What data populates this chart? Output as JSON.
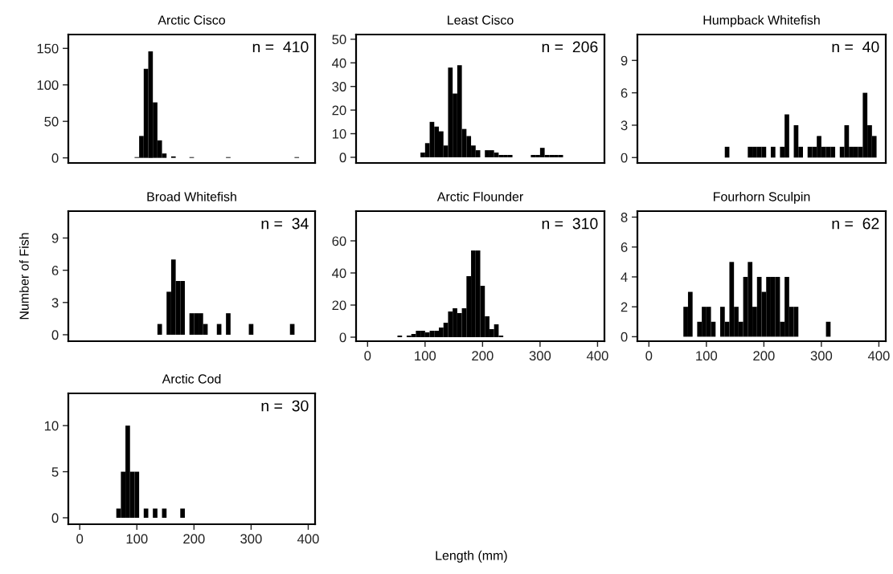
{
  "chart_data": [
    {
      "type": "histogram",
      "title": "Arctic Cisco",
      "annotations": [
        "n =  410"
      ],
      "color": "#000000",
      "tick_labels": "y",
      "xlim": [
        -20,
        412
      ],
      "ylim": [
        -7,
        169
      ],
      "yticks": [
        0,
        50,
        100,
        150
      ],
      "bins": [
        96,
        104,
        112,
        120,
        128,
        136,
        144,
        152,
        160,
        168,
        176,
        184,
        192,
        200,
        208,
        216,
        224,
        232,
        240,
        248,
        256,
        264,
        272,
        280,
        288,
        296,
        304,
        312,
        320,
        328,
        336,
        344,
        352,
        360,
        368,
        376,
        384
      ],
      "values": [
        1,
        30,
        122,
        146,
        76,
        24,
        6,
        0,
        2,
        0,
        0,
        0,
        1,
        0,
        0,
        0,
        0,
        0,
        0,
        0,
        1,
        0,
        0,
        0,
        0,
        0,
        0,
        0,
        0,
        0,
        0,
        0,
        0,
        0,
        0,
        1
      ]
    },
    {
      "type": "histogram",
      "title": "Least Cisco",
      "annotations": [
        "n =  206"
      ],
      "color": "#000000",
      "tick_labels": "y",
      "xlim": [
        -20,
        412
      ],
      "ylim": [
        -2.4,
        52
      ],
      "yticks": [
        0,
        10,
        20,
        30,
        40,
        50
      ],
      "bins": [
        92,
        100,
        108,
        116,
        124,
        132,
        140,
        148,
        156,
        164,
        172,
        180,
        188,
        196,
        204,
        212,
        220,
        228,
        236,
        244,
        252,
        260,
        268,
        276,
        284,
        292,
        300,
        308,
        316,
        324,
        332,
        340
      ],
      "values": [
        2,
        6,
        15,
        13,
        11,
        5,
        38,
        27,
        39,
        12,
        9,
        5,
        3,
        0,
        3,
        3,
        2,
        1,
        1,
        1,
        0,
        0,
        0,
        0,
        1,
        1,
        4,
        1,
        1,
        1,
        1
      ]
    },
    {
      "type": "histogram",
      "title": "Humpback Whitefish",
      "annotations": [
        "n =  40"
      ],
      "color": "#000000",
      "tick_labels": "y",
      "xlim": [
        -20,
        412
      ],
      "ylim": [
        -0.5,
        11.4
      ],
      "yticks": [
        0,
        3,
        6,
        9
      ],
      "bins": [
        132,
        140,
        148,
        156,
        164,
        172,
        180,
        188,
        196,
        204,
        212,
        220,
        228,
        236,
        244,
        252,
        260,
        268,
        276,
        284,
        292,
        300,
        308,
        316,
        324,
        332,
        340,
        348,
        356,
        364,
        372,
        380,
        388,
        396
      ],
      "values": [
        1,
        0,
        0,
        0,
        0,
        1,
        1,
        1,
        1,
        0,
        1,
        0,
        1,
        4,
        0,
        3,
        1,
        0,
        1,
        1,
        2,
        1,
        1,
        1,
        0,
        1,
        3,
        1,
        1,
        1,
        6,
        3,
        2
      ]
    },
    {
      "type": "histogram",
      "title": "Broad Whitefish",
      "ylabel": "Number of Fish",
      "annotations": [
        "n =  34"
      ],
      "color": "#000000",
      "tick_labels": "y",
      "xlim": [
        -20,
        412
      ],
      "ylim": [
        -0.6,
        11.5
      ],
      "yticks": [
        0,
        3,
        6,
        9
      ],
      "bins": [
        136,
        144,
        152,
        160,
        168,
        176,
        184,
        192,
        200,
        208,
        216,
        224,
        232,
        240,
        248,
        256,
        264,
        272,
        280,
        288,
        296,
        304,
        312,
        320,
        328,
        336,
        344,
        352,
        360,
        368,
        376
      ],
      "values": [
        1,
        0,
        4,
        7,
        5,
        5,
        0,
        2,
        2,
        2,
        1,
        0,
        0,
        1,
        0,
        2,
        0,
        0,
        0,
        0,
        1,
        0,
        0,
        0,
        0,
        0,
        0,
        0,
        0,
        1
      ]
    },
    {
      "type": "histogram",
      "title": "Arctic Flounder",
      "xlabel": "Length (mm)",
      "annotations": [
        "n =  310"
      ],
      "color": "#000000",
      "xlim": [
        -20,
        412
      ],
      "xticks": [
        0,
        100,
        200,
        300,
        400
      ],
      "ylim": [
        -2.5,
        78.5
      ],
      "yticks": [
        0,
        20,
        40,
        60
      ],
      "bins": [
        52,
        60,
        68,
        76,
        84,
        92,
        100,
        108,
        116,
        124,
        132,
        140,
        148,
        156,
        164,
        172,
        180,
        188,
        196,
        204,
        212,
        220,
        228,
        236
      ],
      "values": [
        1,
        0,
        1,
        2,
        4,
        4,
        3,
        4,
        4,
        6,
        9,
        16,
        18,
        15,
        18,
        38,
        54,
        54,
        32,
        13,
        5,
        8,
        1
      ]
    },
    {
      "type": "histogram",
      "title": "Fourhorn Sculpin",
      "annotations": [
        "n =  62"
      ],
      "color": "#000000",
      "xlim": [
        -20,
        412
      ],
      "xticks": [
        0,
        100,
        200,
        300,
        400
      ],
      "ylim": [
        -0.3,
        8.4
      ],
      "yticks": [
        0,
        2,
        4,
        6,
        8
      ],
      "bins": [
        60,
        68,
        76,
        84,
        92,
        100,
        108,
        116,
        124,
        132,
        140,
        148,
        156,
        164,
        172,
        180,
        188,
        196,
        204,
        212,
        220,
        228,
        236,
        244,
        252,
        260,
        268,
        276,
        284,
        292,
        300,
        308,
        316
      ],
      "values": [
        2,
        3,
        0,
        1,
        2,
        2,
        1,
        0,
        2,
        1,
        5,
        2,
        1,
        4,
        5,
        2,
        4,
        3,
        4,
        4,
        4,
        1,
        4,
        2,
        2,
        0,
        0,
        0,
        0,
        0,
        0,
        1
      ]
    },
    {
      "type": "histogram",
      "title": "Arctic Cod",
      "annotations": [
        "n =  30"
      ],
      "color": "#000000",
      "xlim": [
        -20,
        412
      ],
      "xticks": [
        0,
        100,
        200,
        300,
        400
      ],
      "ylim": [
        -0.7,
        13.5
      ],
      "yticks": [
        0,
        5,
        10
      ],
      "bins": [
        64,
        72,
        80,
        88,
        96,
        104,
        112,
        120,
        128,
        136,
        144,
        152,
        160,
        168,
        176,
        184
      ],
      "values": [
        1,
        5,
        10,
        5,
        5,
        0,
        1,
        0,
        1,
        0,
        1,
        0,
        0,
        0,
        1
      ]
    }
  ]
}
